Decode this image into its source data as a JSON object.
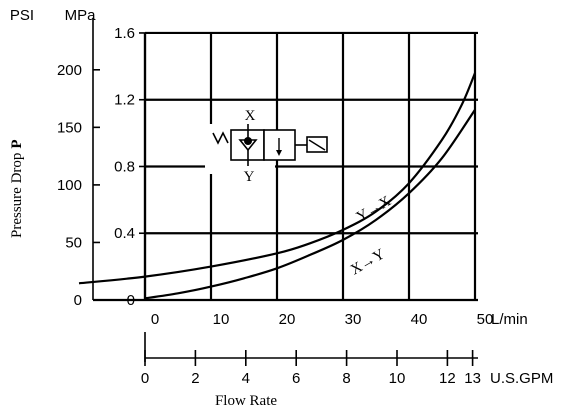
{
  "chart_data": {
    "type": "line",
    "xlabel": "Flow Rate",
    "ylabel": "Pressure Drop",
    "ylabel_symbol": "P",
    "x_axes": [
      {
        "unit": "L/min",
        "range": [
          -10,
          50
        ],
        "ticks": [
          0,
          10,
          20,
          30,
          40,
          50
        ],
        "tick_labels": [
          "0",
          "10",
          "20",
          "30",
          "40",
          "50"
        ]
      },
      {
        "unit": "U.S.GPM",
        "range": [
          0,
          13.2
        ],
        "ticks": [
          0,
          2,
          4,
          6,
          8,
          10,
          12,
          13
        ],
        "tick_labels": [
          "0",
          "2",
          "4",
          "6",
          "8",
          "10",
          "12",
          "13"
        ]
      }
    ],
    "y_axes": [
      {
        "unit": "MPa",
        "range": [
          0,
          1.6
        ],
        "ticks": [
          0,
          0.4,
          0.8,
          1.2,
          1.6
        ],
        "tick_labels": [
          "0",
          "0.4",
          "0.8",
          "1.2",
          "1.6"
        ]
      },
      {
        "unit": "PSI",
        "range": [
          0,
          232
        ],
        "ticks": [
          0,
          50,
          100,
          150,
          200
        ],
        "tick_labels": [
          "0",
          "50",
          "100",
          "150",
          "200"
        ]
      }
    ],
    "grid": true,
    "series": [
      {
        "name": "Y→X",
        "x": [
          -10,
          0,
          10,
          20,
          25,
          30,
          35,
          40,
          45,
          48,
          50
        ],
        "y": [
          0.1,
          0.14,
          0.2,
          0.28,
          0.34,
          0.42,
          0.53,
          0.7,
          0.96,
          1.17,
          1.36
        ]
      },
      {
        "name": "X→Y",
        "x": [
          0,
          5,
          10,
          15,
          20,
          25,
          30,
          35,
          40,
          45,
          50
        ],
        "y": [
          0.01,
          0.04,
          0.08,
          0.13,
          0.19,
          0.27,
          0.36,
          0.48,
          0.64,
          0.85,
          1.14
        ]
      }
    ]
  },
  "symbol": {
    "port_top": "X",
    "port_bottom": "Y"
  }
}
